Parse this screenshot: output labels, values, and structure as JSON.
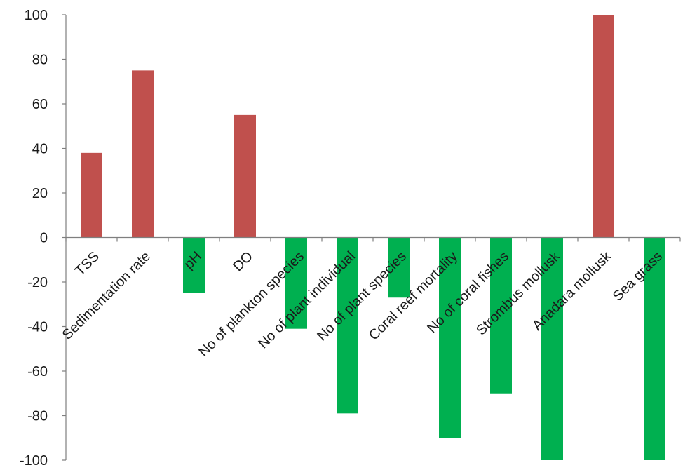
{
  "chart_data": {
    "type": "bar",
    "title": "",
    "xlabel": "",
    "ylabel": "",
    "ylim": [
      -100,
      100
    ],
    "yticks": [
      -100,
      -80,
      -60,
      -40,
      -20,
      0,
      20,
      40,
      60,
      80,
      100
    ],
    "ytick_labels": [
      "-100",
      "-80",
      "-60",
      "-40",
      "-20",
      "0",
      "20",
      "40",
      "60",
      "80",
      "100"
    ],
    "grid": false,
    "legend": "none",
    "colors": {
      "positive": "#c0504d",
      "negative": "#00b050",
      "axis": "#7f7f7f"
    },
    "categories": [
      "TSS",
      "Sedimentation rate",
      "pH",
      "DO",
      "No of plankton species",
      "No of plant individual",
      "No of plant species",
      "Coral reef mortality",
      "No of coral fishes",
      "Strombus mollusk",
      "Anadara mollusk",
      "Sea grass"
    ],
    "values": [
      38,
      75,
      -25,
      55,
      -41,
      -79,
      -27,
      -90,
      -70,
      -100,
      100,
      -100
    ]
  }
}
